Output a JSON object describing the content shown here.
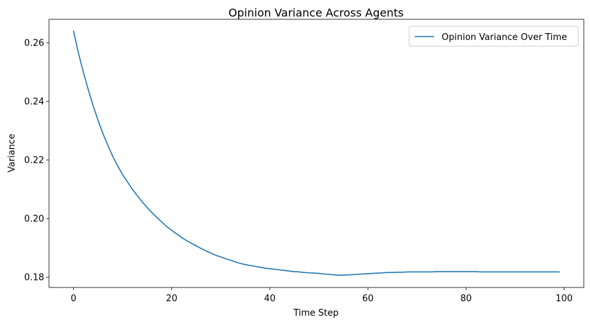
{
  "chart_data": {
    "type": "line",
    "title": "Opinion Variance Across Agents",
    "xlabel": "Time Step",
    "ylabel": "Variance",
    "xlim": [
      -5,
      104
    ],
    "ylim": [
      0.1765,
      0.268
    ],
    "xticks": [
      0,
      20,
      40,
      60,
      80,
      100
    ],
    "yticks": [
      0.18,
      0.2,
      0.22,
      0.24,
      0.26
    ],
    "xtick_labels": [
      "0",
      "20",
      "40",
      "60",
      "80",
      "100"
    ],
    "ytick_labels": [
      "0.18",
      "0.20",
      "0.22",
      "0.24",
      "0.26"
    ],
    "grid": false,
    "legend_position": "top-right",
    "series": [
      {
        "name": "Opinion Variance Over Time",
        "color": "#1f77b4",
        "x": [
          0,
          1,
          2,
          3,
          4,
          5,
          6,
          7,
          8,
          9,
          10,
          11,
          12,
          13,
          14,
          15,
          16,
          17,
          18,
          19,
          20,
          21,
          22,
          23,
          24,
          25,
          26,
          27,
          28,
          29,
          30,
          31,
          32,
          33,
          34,
          35,
          36,
          37,
          38,
          39,
          40,
          41,
          42,
          43,
          44,
          45,
          46,
          47,
          48,
          49,
          50,
          51,
          52,
          53,
          54,
          55,
          56,
          57,
          58,
          59,
          60,
          61,
          62,
          63,
          64,
          65,
          66,
          67,
          68,
          69,
          70,
          71,
          72,
          73,
          74,
          75,
          76,
          77,
          78,
          79,
          80,
          81,
          82,
          83,
          84,
          85,
          86,
          87,
          88,
          89,
          90,
          91,
          92,
          93,
          94,
          95,
          96,
          97,
          98,
          99
        ],
        "values": [
          0.264,
          0.2565,
          0.25,
          0.244,
          0.2385,
          0.2335,
          0.229,
          0.225,
          0.2212,
          0.218,
          0.215,
          0.2125,
          0.21,
          0.2078,
          0.2057,
          0.2038,
          0.202,
          0.2004,
          0.1988,
          0.1973,
          0.196,
          0.1948,
          0.1936,
          0.1925,
          0.1916,
          0.1907,
          0.1898,
          0.189,
          0.1882,
          0.1875,
          0.1869,
          0.1863,
          0.1858,
          0.1852,
          0.1847,
          0.1843,
          0.184,
          0.1837,
          0.1834,
          0.1831,
          0.1829,
          0.1827,
          0.1825,
          0.1823,
          0.1821,
          0.1819,
          0.1818,
          0.1816,
          0.1815,
          0.1814,
          0.1813,
          0.1811,
          0.181,
          0.1808,
          0.1807,
          0.1807,
          0.1808,
          0.1809,
          0.181,
          0.1811,
          0.1812,
          0.1813,
          0.1814,
          0.1815,
          0.1816,
          0.1816,
          0.1817,
          0.1817,
          0.1818,
          0.1818,
          0.1818,
          0.1818,
          0.1818,
          0.1818,
          0.1819,
          0.1819,
          0.1819,
          0.1819,
          0.1819,
          0.1819,
          0.1819,
          0.1819,
          0.1819,
          0.1818,
          0.1818,
          0.1818,
          0.1818,
          0.1818,
          0.1818,
          0.1818,
          0.1818,
          0.1818,
          0.1818,
          0.1818,
          0.1818,
          0.1818,
          0.1818,
          0.1818,
          0.1818,
          0.1818
        ]
      }
    ]
  }
}
